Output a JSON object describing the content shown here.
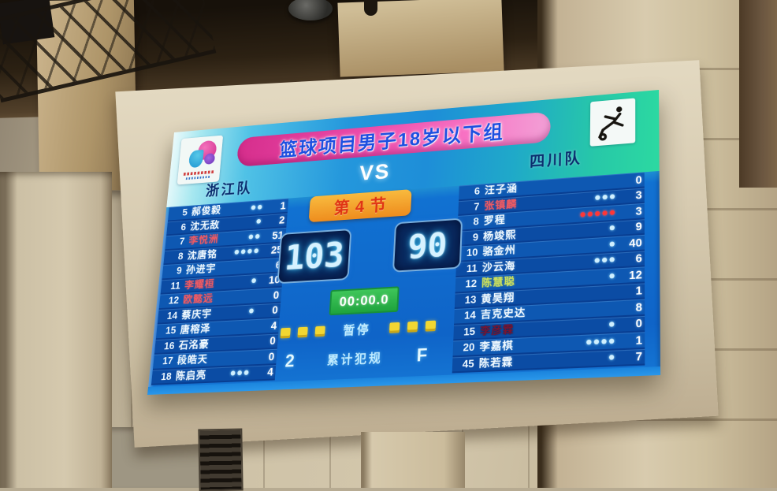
{
  "scoreboard": {
    "event_title": "篮球项目男子18岁以下组",
    "vs_label": "VS",
    "period_label": "第4节",
    "clock": "00:00.0",
    "timeout_label": "暂停",
    "team_fouls_label": "累计犯规",
    "home_team": {
      "name": "浙江队",
      "score": "103",
      "team_fouls": "2",
      "timeouts_remaining": 3,
      "players": [
        {
          "num": "5",
          "name": "郝俊毅",
          "fouls": 2,
          "pts": "1"
        },
        {
          "num": "6",
          "name": "沈无敌",
          "fouls": 1,
          "pts": "2"
        },
        {
          "num": "7",
          "name": "李悦洲",
          "fouls": 2,
          "pts": "51",
          "highlight": "red"
        },
        {
          "num": "8",
          "name": "沈唐铭",
          "fouls": 4,
          "pts": "25"
        },
        {
          "num": "9",
          "name": "孙进宇",
          "fouls": 0,
          "pts": "6"
        },
        {
          "num": "11",
          "name": "李耀桓",
          "fouls": 1,
          "pts": "10",
          "highlight": "red"
        },
        {
          "num": "12",
          "name": "欧懿远",
          "fouls": 0,
          "pts": "0",
          "highlight": "red"
        },
        {
          "num": "14",
          "name": "蔡庆宇",
          "fouls": 1,
          "pts": "0"
        },
        {
          "num": "15",
          "name": "唐榕泽",
          "fouls": 0,
          "pts": "4"
        },
        {
          "num": "16",
          "name": "石洺豪",
          "fouls": 0,
          "pts": "0"
        },
        {
          "num": "17",
          "name": "段皓天",
          "fouls": 0,
          "pts": "0"
        },
        {
          "num": "18",
          "name": "陈启亮",
          "fouls": 3,
          "pts": "4"
        }
      ]
    },
    "away_team": {
      "name": "四川队",
      "score": "90",
      "team_fouls": "F",
      "timeouts_remaining": 3,
      "players": [
        {
          "num": "6",
          "name": "汪子涵",
          "fouls": 0,
          "pts": "0"
        },
        {
          "num": "7",
          "name": "张镇麟",
          "fouls": 3,
          "pts": "3",
          "highlight": "red"
        },
        {
          "num": "8",
          "name": "罗程",
          "fouls": 5,
          "pts": "3",
          "foul_dots": "red"
        },
        {
          "num": "9",
          "name": "杨竣熙",
          "fouls": 1,
          "pts": "9"
        },
        {
          "num": "10",
          "name": "骆金州",
          "fouls": 1,
          "pts": "40"
        },
        {
          "num": "11",
          "name": "沙云海",
          "fouls": 3,
          "pts": "6"
        },
        {
          "num": "12",
          "name": "陈慧聪",
          "fouls": 1,
          "pts": "12",
          "highlight": "yellow"
        },
        {
          "num": "13",
          "name": "黄昊翔",
          "fouls": 0,
          "pts": "1"
        },
        {
          "num": "14",
          "name": "吉克史达",
          "fouls": 0,
          "pts": "8"
        },
        {
          "num": "15",
          "name": "李彦霖",
          "fouls": 1,
          "pts": "0",
          "highlight": "dark"
        },
        {
          "num": "20",
          "name": "李嘉棋",
          "fouls": 4,
          "pts": "1"
        },
        {
          "num": "45",
          "name": "陈若霖",
          "fouls": 1,
          "pts": "7"
        }
      ]
    },
    "colors": {
      "accent_pink": "#e8359a",
      "board_blue": "#0f64c8",
      "strip_teal": "#2cd9a1",
      "period_orange": "#ee8c1d",
      "clock_green": "#2db84e",
      "timeout_yellow": "#f2d732",
      "foul_red": "#ff3636"
    }
  }
}
